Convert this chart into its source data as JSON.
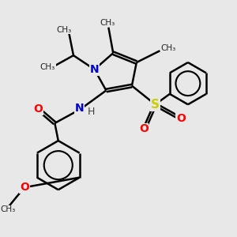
{
  "bg_color": "#e8e8e8",
  "bond_color": "#000000",
  "N_color": "#0000cc",
  "O_color": "#ff0000",
  "S_color": "#cccc00",
  "line_width": 1.8,
  "dbo": 0.06,
  "figsize": [
    3.0,
    3.0
  ],
  "dpi": 100,
  "xlim": [
    0,
    10
  ],
  "ylim": [
    0,
    10
  ]
}
